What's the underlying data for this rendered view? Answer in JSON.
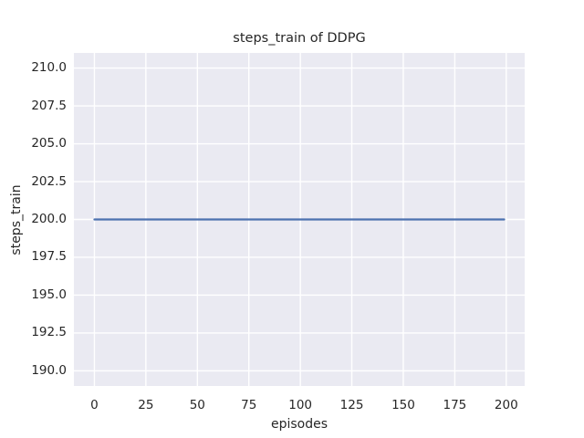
{
  "chart_data": {
    "type": "line",
    "title": "steps_train of DDPG",
    "xlabel": "episodes",
    "ylabel": "steps_train",
    "x": [
      0,
      199
    ],
    "series": [
      {
        "name": "steps_train",
        "color": "#4c72b0",
        "x": [
          0,
          199
        ],
        "y": [
          200,
          200
        ]
      }
    ],
    "xlim": [
      -9.95,
      208.95
    ],
    "ylim": [
      189,
      211
    ],
    "xticks": [
      {
        "value": 0,
        "label": "0"
      },
      {
        "value": 25,
        "label": "25"
      },
      {
        "value": 50,
        "label": "50"
      },
      {
        "value": 75,
        "label": "75"
      },
      {
        "value": 100,
        "label": "100"
      },
      {
        "value": 125,
        "label": "125"
      },
      {
        "value": 150,
        "label": "150"
      },
      {
        "value": 175,
        "label": "175"
      },
      {
        "value": 200,
        "label": "200"
      }
    ],
    "yticks": [
      {
        "value": 190.0,
        "label": "190.0"
      },
      {
        "value": 192.5,
        "label": "192.5"
      },
      {
        "value": 195.0,
        "label": "195.0"
      },
      {
        "value": 197.5,
        "label": "197.5"
      },
      {
        "value": 200.0,
        "label": "200.0"
      },
      {
        "value": 202.5,
        "label": "202.5"
      },
      {
        "value": 205.0,
        "label": "205.0"
      },
      {
        "value": 207.5,
        "label": "207.5"
      },
      {
        "value": 210.0,
        "label": "210.0"
      }
    ],
    "grid": true,
    "legend": null,
    "style": {
      "figure_background": "#ffffff",
      "plot_background": "#eaeaf2",
      "grid_color": "#ffffff",
      "text_color": "#262626",
      "line_width": 2.25,
      "grid_width": 1.4
    }
  }
}
